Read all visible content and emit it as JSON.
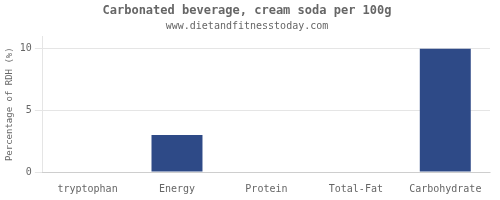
{
  "chart_data": {
    "type": "bar",
    "title": "Carbonated beverage, cream soda per 100g",
    "subtitle": "www.dietandfitnesstoday.com",
    "categories": [
      "tryptophan",
      "Energy",
      "Protein",
      "Total-Fat",
      "Carbohydrate"
    ],
    "values": [
      0,
      3.0,
      0,
      0,
      10.0
    ],
    "color": "#2e4a87",
    "ylabel": "Percentage of RDH (%)",
    "ylim": [
      0,
      11
    ],
    "yticks": [
      0,
      5,
      10
    ],
    "grid": "y"
  }
}
